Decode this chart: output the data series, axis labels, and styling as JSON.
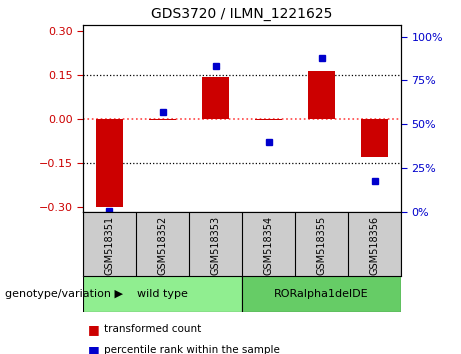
{
  "title": "GDS3720 / ILMN_1221625",
  "samples": [
    "GSM518351",
    "GSM518352",
    "GSM518353",
    "GSM518354",
    "GSM518355",
    "GSM518356"
  ],
  "transformed_count": [
    -0.3,
    -0.005,
    0.143,
    -0.005,
    0.162,
    -0.13
  ],
  "percentile_rank": [
    1,
    57,
    83,
    40,
    88,
    18
  ],
  "ylim_left": [
    -0.32,
    0.32
  ],
  "ylim_right": [
    0,
    106.67
  ],
  "yticks_left": [
    -0.3,
    -0.15,
    0,
    0.15,
    0.3
  ],
  "yticks_right": [
    0,
    25,
    50,
    75,
    100
  ],
  "ytick_labels_right": [
    "0%",
    "25%",
    "50%",
    "75%",
    "100%"
  ],
  "bar_color": "#CC0000",
  "dot_color": "#0000CC",
  "groups": [
    {
      "label": "wild type",
      "indices": [
        0,
        1,
        2
      ],
      "color": "#90EE90"
    },
    {
      "label": "RORalpha1delDE",
      "indices": [
        3,
        4,
        5
      ],
      "color": "#66CC66"
    }
  ],
  "group_label": "genotype/variation",
  "legend_items": [
    {
      "label": "transformed count",
      "color": "#CC0000"
    },
    {
      "label": "percentile rank within the sample",
      "color": "#0000CC"
    }
  ],
  "hline_color": "#FF4444",
  "bg_color": "#FFFFFF",
  "tick_area_color": "#CCCCCC",
  "separator_color": "#888888"
}
